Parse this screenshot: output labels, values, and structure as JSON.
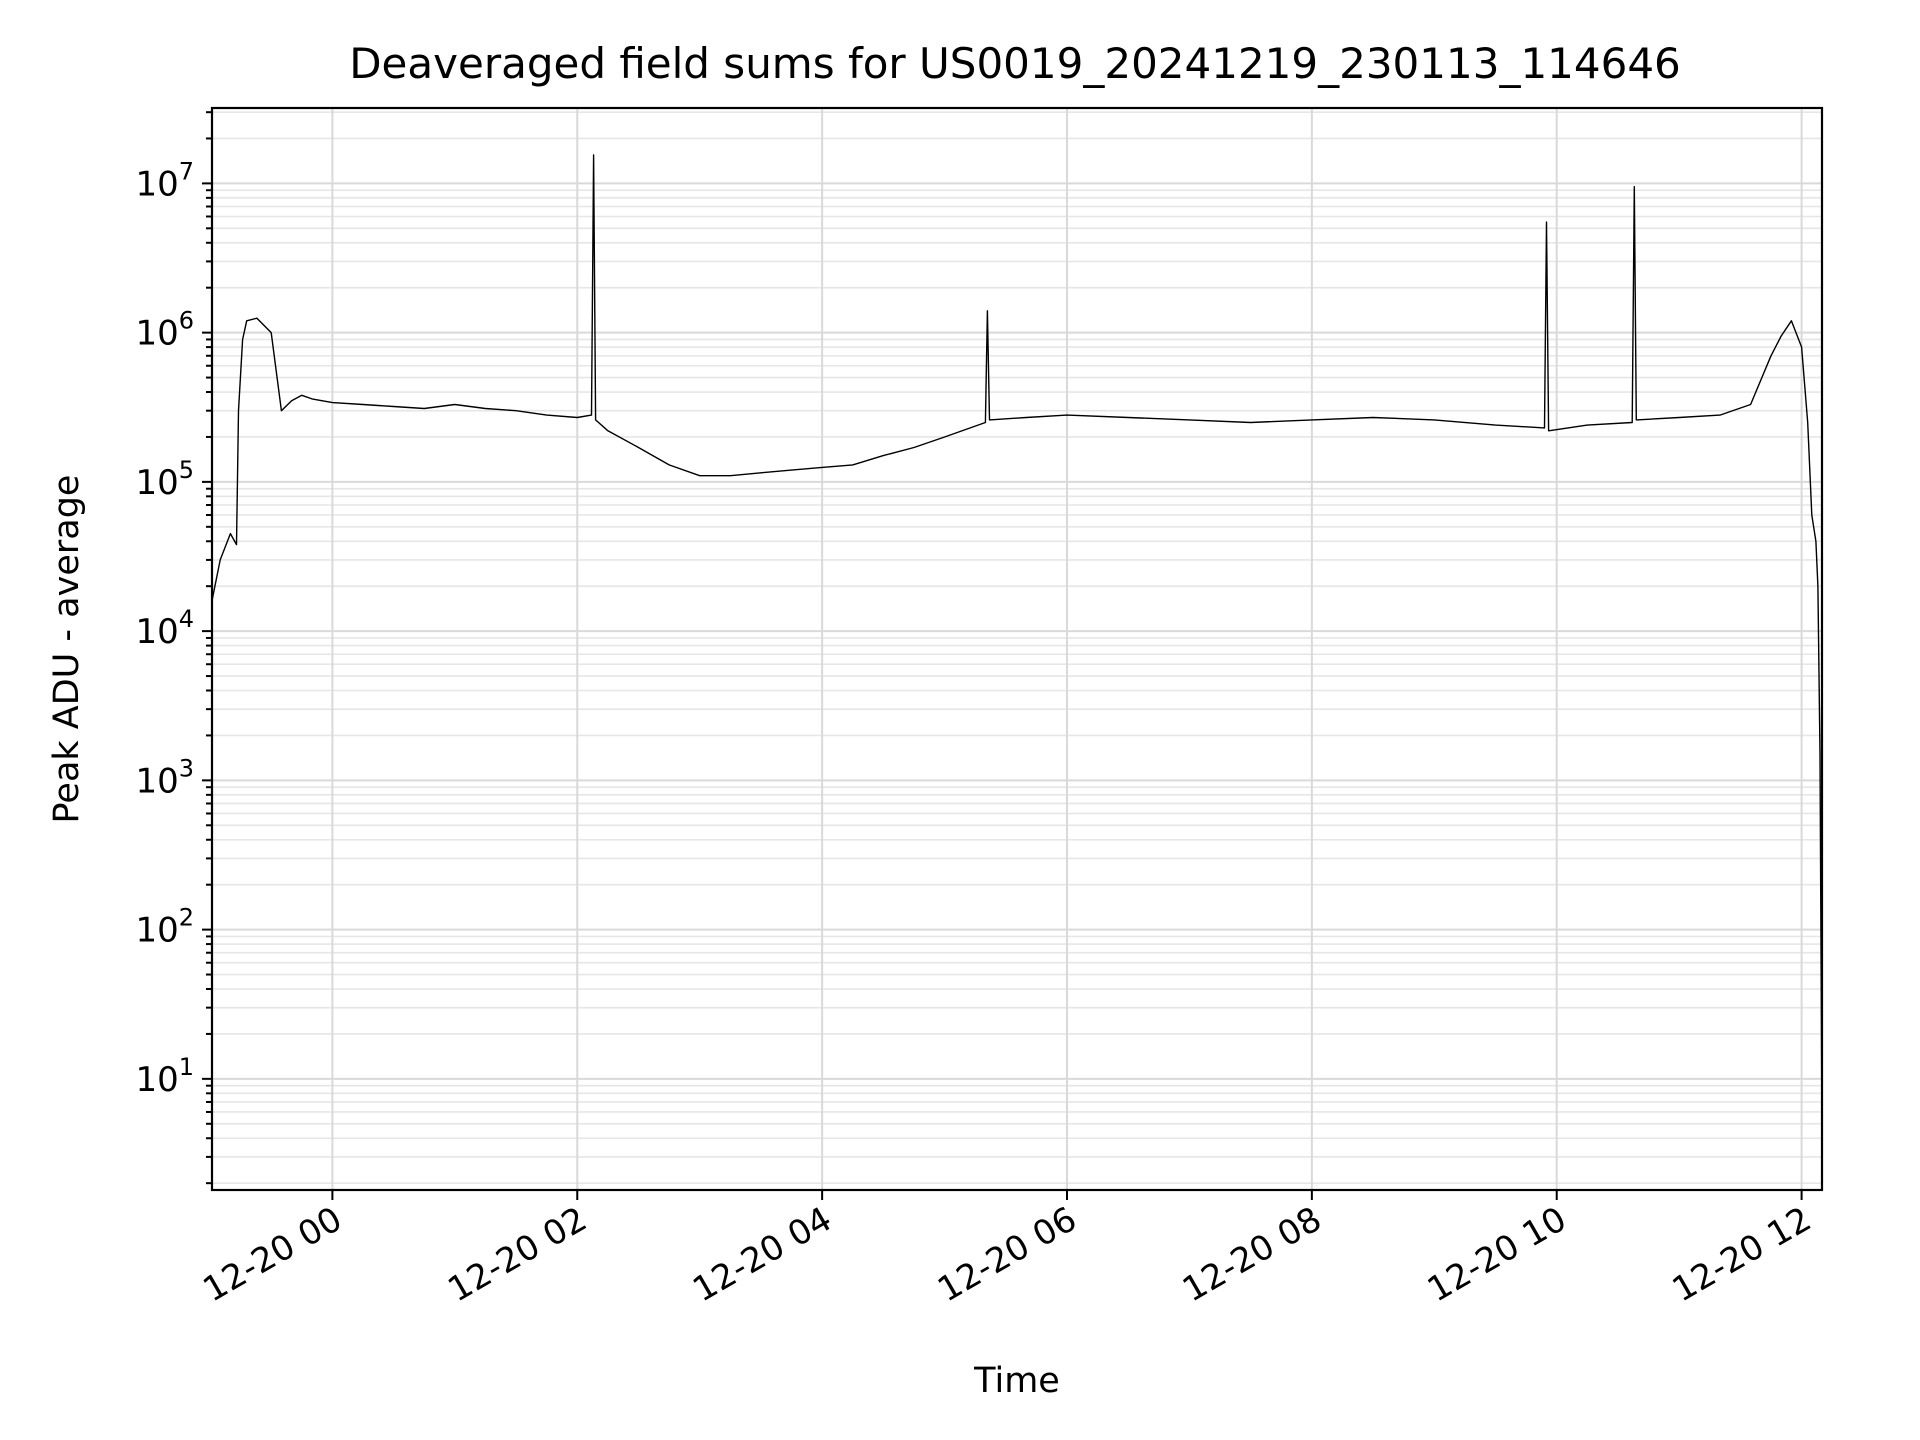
{
  "chart_data": {
    "type": "line",
    "title": "Deaveraged field sums for US0019_20241219_230113_114646",
    "xlabel": "Time",
    "ylabel": "Peak ADU - average",
    "xscale": "time",
    "yscale": "log",
    "xlim": [
      "2024-12-19 23:01",
      "2024-12-20 12:10"
    ],
    "ylim": [
      1.8,
      32000000
    ],
    "grid": true,
    "legend": "none",
    "line_color": "#000000",
    "xticks": [
      {
        "value": "2024-12-20 00:00",
        "label": "12-20 00"
      },
      {
        "value": "2024-12-20 02:00",
        "label": "12-20 02"
      },
      {
        "value": "2024-12-20 04:00",
        "label": "12-20 04"
      },
      {
        "value": "2024-12-20 06:00",
        "label": "12-20 06"
      },
      {
        "value": "2024-12-20 08:00",
        "label": "12-20 08"
      },
      {
        "value": "2024-12-20 10:00",
        "label": "12-20 10"
      },
      {
        "value": "2024-12-20 12:00",
        "label": "12-20 12"
      }
    ],
    "yticks": [
      {
        "value": 10,
        "base": "10",
        "exp": "1"
      },
      {
        "value": 100,
        "base": "10",
        "exp": "2"
      },
      {
        "value": 1000,
        "base": "10",
        "exp": "3"
      },
      {
        "value": 10000,
        "base": "10",
        "exp": "4"
      },
      {
        "value": 100000,
        "base": "10",
        "exp": "5"
      },
      {
        "value": 1000000,
        "base": "10",
        "exp": "6"
      },
      {
        "value": 10000000,
        "base": "10",
        "exp": "7"
      }
    ],
    "series": [
      {
        "x": [
          "2024-12-19 23:01",
          "2024-12-19 23:05",
          "2024-12-19 23:10",
          "2024-12-19 23:13",
          "2024-12-19 23:14",
          "2024-12-19 23:16",
          "2024-12-19 23:18",
          "2024-12-19 23:23",
          "2024-12-19 23:30",
          "2024-12-19 23:35",
          "2024-12-19 23:40",
          "2024-12-19 23:45",
          "2024-12-19 23:50",
          "2024-12-20 00:00",
          "2024-12-20 00:15",
          "2024-12-20 00:30",
          "2024-12-20 00:45",
          "2024-12-20 01:00",
          "2024-12-20 01:15",
          "2024-12-20 01:30",
          "2024-12-20 01:45",
          "2024-12-20 02:00",
          "2024-12-20 02:07",
          "2024-12-20 02:08",
          "2024-12-20 02:09",
          "2024-12-20 02:15",
          "2024-12-20 02:30",
          "2024-12-20 02:45",
          "2024-12-20 03:00",
          "2024-12-20 03:15",
          "2024-12-20 03:30",
          "2024-12-20 03:45",
          "2024-12-20 04:00",
          "2024-12-20 04:15",
          "2024-12-20 04:30",
          "2024-12-20 04:45",
          "2024-12-20 05:00",
          "2024-12-20 05:20",
          "2024-12-20 05:21",
          "2024-12-20 05:22",
          "2024-12-20 05:40",
          "2024-12-20 06:00",
          "2024-12-20 06:30",
          "2024-12-20 07:00",
          "2024-12-20 07:30",
          "2024-12-20 08:00",
          "2024-12-20 08:30",
          "2024-12-20 09:00",
          "2024-12-20 09:30",
          "2024-12-20 09:54",
          "2024-12-20 09:55",
          "2024-12-20 09:56",
          "2024-12-20 10:15",
          "2024-12-20 10:37",
          "2024-12-20 10:38",
          "2024-12-20 10:39",
          "2024-12-20 11:00",
          "2024-12-20 11:20",
          "2024-12-20 11:35",
          "2024-12-20 11:45",
          "2024-12-20 11:50",
          "2024-12-20 11:55",
          "2024-12-20 12:00",
          "2024-12-20 12:03",
          "2024-12-20 12:05",
          "2024-12-20 12:07",
          "2024-12-20 12:08",
          "2024-12-20 12:09",
          "2024-12-20 12:10"
        ],
        "y": [
          16000,
          30000,
          45000,
          38000,
          300000,
          900000,
          1200000,
          1250000,
          1000000,
          300000,
          350000,
          380000,
          360000,
          340000,
          330000,
          320000,
          310000,
          330000,
          310000,
          300000,
          280000,
          270000,
          280000,
          15500000,
          260000,
          220000,
          170000,
          130000,
          110000,
          110000,
          115000,
          120000,
          125000,
          130000,
          150000,
          170000,
          200000,
          250000,
          1400000,
          260000,
          270000,
          280000,
          270000,
          260000,
          250000,
          260000,
          270000,
          260000,
          240000,
          230000,
          5500000,
          220000,
          240000,
          250000,
          9500000,
          260000,
          270000,
          280000,
          330000,
          700000,
          950000,
          1200000,
          800000,
          250000,
          60000,
          40000,
          20000,
          1500,
          4
        ]
      }
    ]
  }
}
